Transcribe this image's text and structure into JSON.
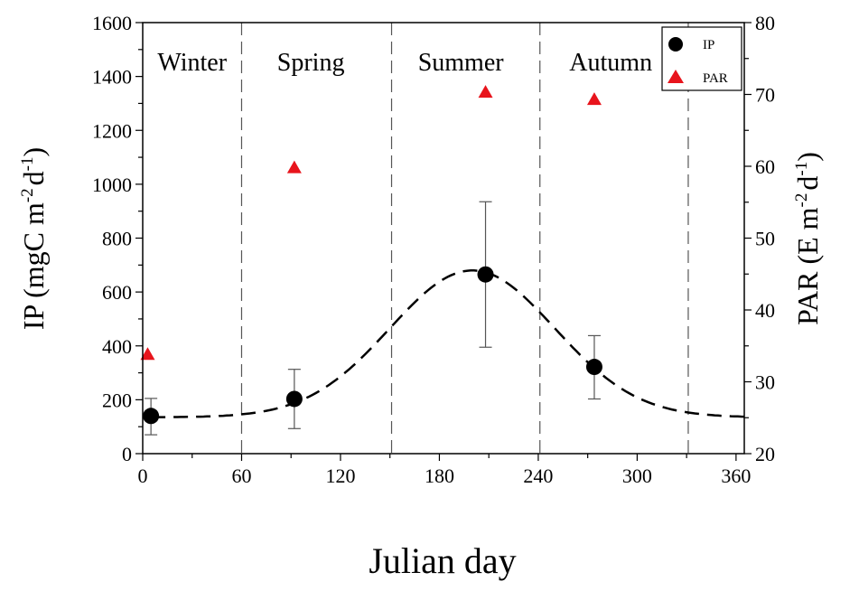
{
  "chart_data": {
    "type": "scatter",
    "xlabel": "Julian day",
    "ylabel_left": {
      "base": "IP (mgC m",
      "sup1": "-2",
      "mid": "d",
      "sup2": "-1",
      "end": ")"
    },
    "ylabel_right": {
      "base": "PAR (E m",
      "sup1": "-2",
      "mid": "d",
      "sup2": "-1",
      "end": ")"
    },
    "xlim": [
      0,
      365
    ],
    "ylim_left": [
      0,
      1600
    ],
    "ylim_right": [
      20,
      80
    ],
    "xticks": [
      0,
      60,
      120,
      180,
      240,
      300,
      360
    ],
    "yticks_left": [
      0,
      200,
      400,
      600,
      800,
      1000,
      1200,
      1400,
      1600
    ],
    "yticks_right": [
      20,
      30,
      40,
      50,
      60,
      70,
      80
    ],
    "season_boundaries": [
      60,
      151,
      241,
      331
    ],
    "seasons": [
      {
        "label": "Winter",
        "x": 30
      },
      {
        "label": "Spring",
        "x": 102
      },
      {
        "label": "Summer",
        "x": 193
      },
      {
        "label": "Autumn",
        "x": 284
      }
    ],
    "series": [
      {
        "name": "IP",
        "axis": "left",
        "marker": "circle",
        "color": "#000000",
        "points": [
          {
            "x": 5,
            "y": 140,
            "err_low": 70,
            "err_high": 205
          },
          {
            "x": 92,
            "y": 203,
            "err_low": 93,
            "err_high": 313
          },
          {
            "x": 208,
            "y": 665,
            "err_low": 395,
            "err_high": 935
          },
          {
            "x": 274,
            "y": 322,
            "err_low": 203,
            "err_high": 438
          }
        ]
      },
      {
        "name": "PAR",
        "axis": "right",
        "marker": "triangle",
        "color": "#e8141c",
        "points": [
          {
            "x": 3,
            "y": 33.8
          },
          {
            "x": 92,
            "y": 59.8
          },
          {
            "x": 208,
            "y": 70.3
          },
          {
            "x": 274,
            "y": 69.3
          }
        ]
      }
    ],
    "fit_curve": {
      "style": "dashed",
      "axis": "left",
      "model": "gaussian",
      "baseline": 135,
      "amplitude": 545,
      "center": 200,
      "width": 50,
      "x_range": [
        5,
        365
      ]
    },
    "legend": {
      "position": "top-right"
    }
  }
}
